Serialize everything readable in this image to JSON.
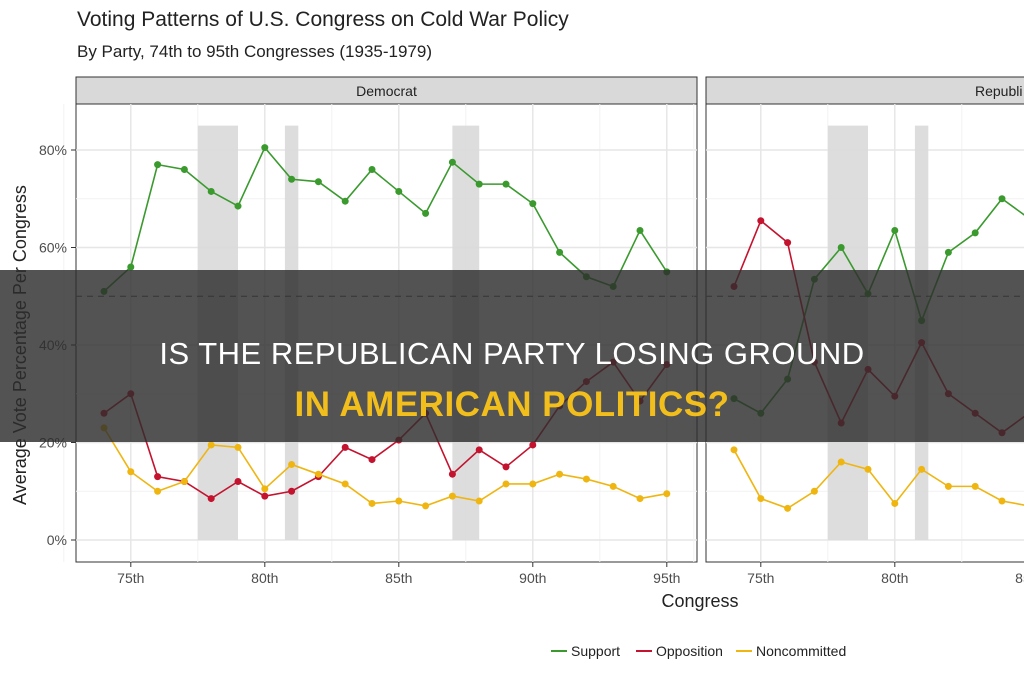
{
  "chart_data": {
    "type": "line",
    "title": "Voting Patterns of U.S. Congress on Cold War Policy",
    "subtitle": "By Party, 74th to 95th Congresses (1935-1979)",
    "xlabel": "Congress",
    "ylabel": "Average Vote Percentage Per Congress",
    "ylim": [
      0,
      85
    ],
    "yticks": [
      "0%",
      "20%",
      "40%",
      "60%",
      "80%"
    ],
    "ytick_values": [
      0,
      20,
      40,
      60,
      80
    ],
    "xtick_values": [
      75,
      80,
      85,
      90,
      95
    ],
    "xticks": [
      "75th",
      "80th",
      "85th",
      "90th",
      "95th"
    ],
    "reference_line": 50,
    "grid": true,
    "legend_position": "bottom",
    "legend": [
      "Support",
      "Opposition",
      "Noncommitted"
    ],
    "colors": {
      "Support": "#3a9a2e",
      "Opposition": "#c4132f",
      "Noncommitted": "#efb511",
      "shade": "#d9d9d9"
    },
    "shaded_periods": [
      [
        77.5,
        79
      ],
      [
        80.75,
        81.25
      ],
      [
        87,
        88
      ]
    ],
    "panels": [
      {
        "name": "Democrat",
        "x": [
          74,
          75,
          76,
          77,
          78,
          79,
          80,
          81,
          82,
          83,
          84,
          85,
          86,
          87,
          88,
          89,
          90,
          91,
          92,
          93,
          94,
          95
        ],
        "series": [
          {
            "name": "Support",
            "values": [
              51,
              56,
              77,
              76,
              71.5,
              68.5,
              80.5,
              74,
              73.5,
              69.5,
              76,
              71.5,
              67,
              77.5,
              73,
              73,
              69,
              59,
              54,
              52,
              63.5,
              55
            ]
          },
          {
            "name": "Opposition",
            "values": [
              26,
              30,
              13,
              12,
              8.5,
              12,
              9,
              10,
              13,
              19,
              16.5,
              20.5,
              26,
              13.5,
              18.5,
              15,
              19.5,
              27.5,
              32.5,
              36.5,
              28.5,
              36
            ]
          },
          {
            "name": "Noncommitted",
            "values": [
              23,
              14,
              10,
              12,
              19.5,
              19,
              10.5,
              15.5,
              13.5,
              11.5,
              7.5,
              8,
              7,
              9,
              8,
              11.5,
              11.5,
              13.5,
              12.5,
              11,
              8.5,
              9.5
            ]
          }
        ]
      },
      {
        "name": "Republican",
        "strip_label": "Republi",
        "x": [
          74,
          75,
          76,
          77,
          78,
          79,
          80,
          81,
          82,
          83,
          84,
          85
        ],
        "series": [
          {
            "name": "Support",
            "values": [
              29,
              26,
              33,
              53.5,
              60,
              50.5,
              63.5,
              45,
              59,
              63,
              70,
              66
            ]
          },
          {
            "name": "Opposition",
            "values": [
              52,
              65.5,
              61,
              36.5,
              24,
              35,
              29.5,
              40.5,
              30,
              26,
              22,
              26
            ]
          },
          {
            "name": "Noncommitted",
            "values": [
              18.5,
              8.5,
              6.5,
              10,
              16,
              14.5,
              7.5,
              14.5,
              11,
              11,
              8,
              7
            ]
          }
        ]
      }
    ]
  },
  "banner": {
    "line1": "IS THE REPUBLICAN PARTY LOSING GROUND",
    "line2": "IN AMERICAN POLITICS?"
  }
}
